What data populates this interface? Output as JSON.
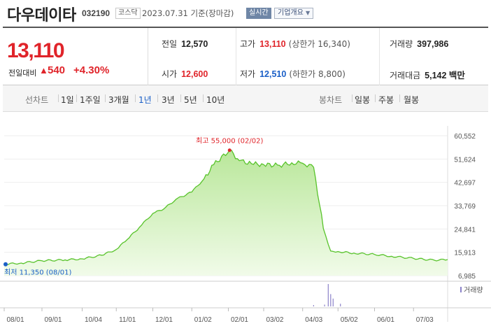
{
  "header": {
    "name": "다우데이타",
    "code": "032190",
    "market": "코스닥",
    "date": "2023.07.31 기준(장마감)",
    "realtime": "실시간",
    "overview": "기업개요"
  },
  "quote": {
    "price": "13,110",
    "change_label": "전일대비",
    "change_arrow": "▲",
    "change": "540",
    "change_pct": "+4.30%",
    "prev_close_label": "전일",
    "prev_close": "12,570",
    "high_label": "고가",
    "high": "13,110",
    "upper_limit": "(상한가 16,340)",
    "volume_label": "거래량",
    "volume": "397,986",
    "open_label": "시가",
    "open": "12,600",
    "low_label": "저가",
    "low": "12,510",
    "lower_limit": "(하한가 8,800)",
    "amount_label": "거래대금",
    "amount": "5,142 백만"
  },
  "toolbar": {
    "line_label": "선차트",
    "line_periods": [
      "1일",
      "1주일",
      "3개월",
      "1년",
      "3년",
      "5년",
      "10년"
    ],
    "selected_period": "1년",
    "candle_label": "봉차트",
    "candle_periods": [
      "일봉",
      "주봉",
      "월봉"
    ]
  },
  "colors": {
    "up": "#e0242a",
    "down": "#1a5fc7",
    "line": "#58c32b",
    "fill": "#d8f2c3"
  },
  "chart_data": {
    "type": "area",
    "series": [
      {
        "x": [
          "2022-08-01",
          "2022-08-15",
          "2022-09-01",
          "2022-09-20",
          "2022-10-04",
          "2022-10-20",
          "2022-11-01",
          "2022-11-10",
          "2022-11-20",
          "2022-12-01",
          "2022-12-10",
          "2022-12-20",
          "2023-01-02",
          "2023-01-12",
          "2023-01-20",
          "2023-02-02",
          "2023-02-10",
          "2023-02-20",
          "2023-03-02",
          "2023-03-15",
          "2023-03-25",
          "2023-04-03",
          "2023-04-12",
          "2023-04-20",
          "2023-04-26",
          "2023-05-02",
          "2023-05-15",
          "2023-06-01",
          "2023-06-15",
          "2023-07-03",
          "2023-07-20",
          "2023-07-31"
        ],
        "values": [
          11350,
          11800,
          12700,
          13000,
          13400,
          14800,
          17000,
          20800,
          25500,
          30800,
          32500,
          36200,
          39000,
          44000,
          49500,
          55000,
          51000,
          49800,
          49500,
          49200,
          50200,
          50000,
          48500,
          25000,
          16400,
          16200,
          15600,
          15100,
          14400,
          13600,
          12900,
          13110
        ]
      }
    ],
    "yticks": [
      "60,552",
      "51,624",
      "42,697",
      "33,769",
      "24,841",
      "15,913",
      "6,985"
    ],
    "ylim": [
      6985,
      60552
    ],
    "xticks": [
      "08/01",
      "09/01",
      "10/04",
      "11/01",
      "12/01",
      "01/02",
      "02/01",
      "03/02",
      "04/03",
      "05/02",
      "06/01",
      "07/03"
    ],
    "xtick_dates": [
      "2022-08-01",
      "2022-09-01",
      "2022-10-04",
      "2022-11-01",
      "2022-12-01",
      "2023-01-02",
      "2023-02-01",
      "2023-03-02",
      "2023-04-03",
      "2023-05-02",
      "2023-06-01",
      "2023-07-03"
    ],
    "annotations": {
      "high": "최고 55,000 (02/02)",
      "low": "최저 11,350 (08/01)"
    },
    "volume_label": "거래량",
    "volume_spikes": [
      {
        "date": "2023-04-24",
        "level": 1.0
      },
      {
        "date": "2023-04-26",
        "level": 0.55
      },
      {
        "date": "2023-04-28",
        "level": 0.35
      },
      {
        "date": "2023-04-21",
        "level": 0.08
      },
      {
        "date": "2023-05-04",
        "level": 0.12
      },
      {
        "date": "2023-04-12",
        "level": 0.06
      }
    ]
  }
}
